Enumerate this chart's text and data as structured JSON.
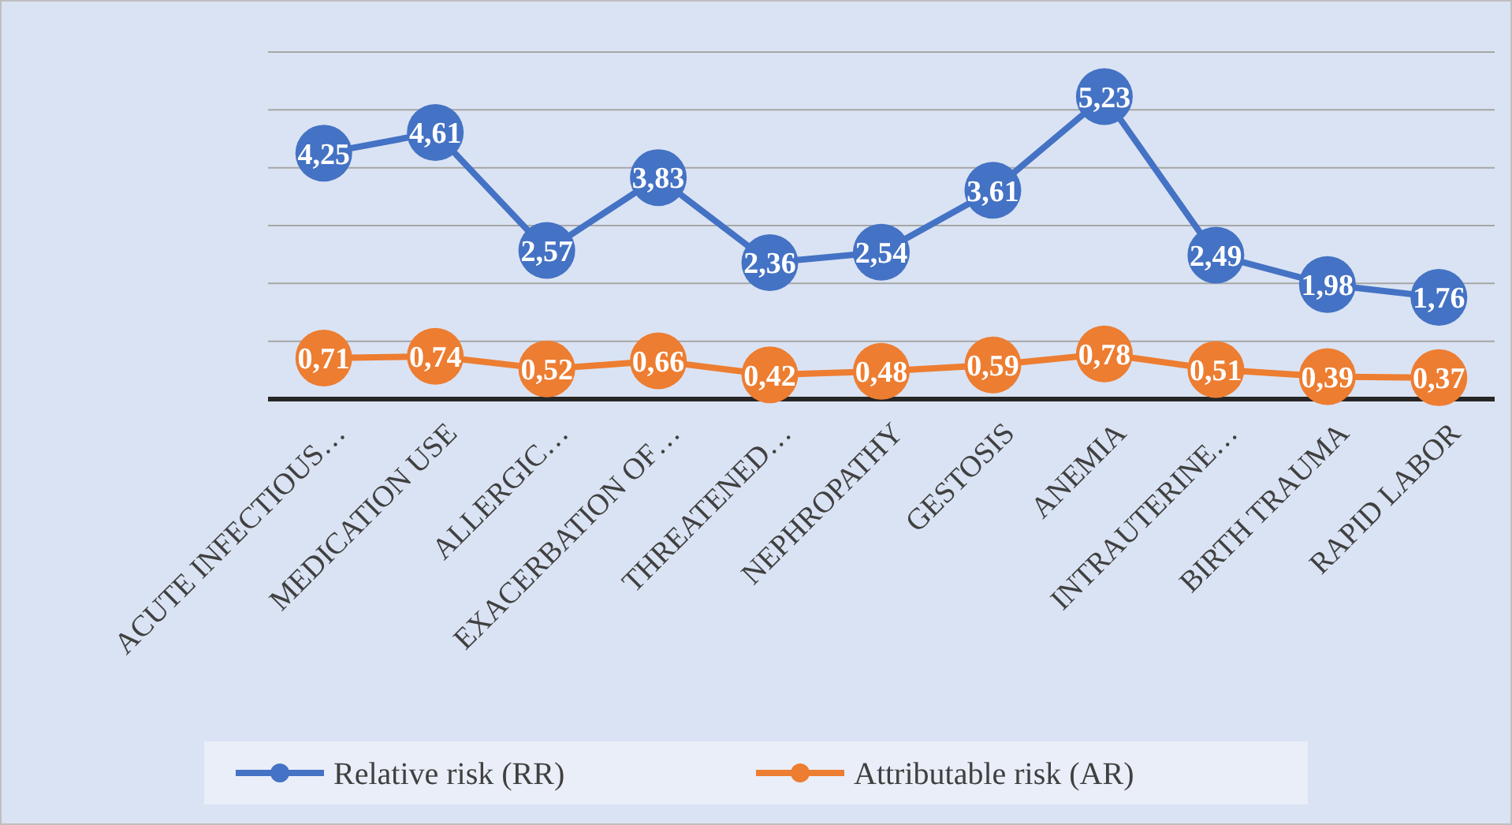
{
  "chart_data": {
    "type": "line",
    "categories": [
      "ACUTE INFECTIOUS…",
      "MEDICATION USE",
      "ALLERGIC…",
      "EXACERBATION OF…",
      "THREATENED…",
      "NEPHROPATHY",
      "GESTOSIS",
      "ANEMIA",
      "INTRAUTERINE…",
      "BIRTH TRAUMA",
      "RAPID LABOR"
    ],
    "series": [
      {
        "name": "Relative risk (RR)",
        "color": "#4472c4",
        "values": [
          4.25,
          4.61,
          2.57,
          3.83,
          2.36,
          2.54,
          3.61,
          5.23,
          2.49,
          1.98,
          1.76
        ],
        "value_labels": [
          "4,25",
          "4,61",
          "2,57",
          "3,83",
          "2,36",
          "2,54",
          "3,61",
          "5,23",
          "2,49",
          "1,98",
          "1,76"
        ]
      },
      {
        "name": "Attributable risk (AR)",
        "color": "#ed7d31",
        "values": [
          0.71,
          0.74,
          0.52,
          0.66,
          0.42,
          0.48,
          0.59,
          0.78,
          0.51,
          0.39,
          0.37
        ],
        "value_labels": [
          "0,71",
          "0,74",
          "0,52",
          "0,66",
          "0,42",
          "0,48",
          "0,59",
          "0,78",
          "0,51",
          "0,39",
          "0,37"
        ]
      }
    ],
    "ylim": [
      0,
      6
    ],
    "yticks": [
      {
        "value": 0,
        "label": null
      },
      {
        "value": 1,
        "label": null
      },
      {
        "value": 2,
        "label": null
      },
      {
        "value": 3,
        "label": null
      },
      {
        "value": 4,
        "label": null
      },
      {
        "value": 5,
        "label": null
      },
      {
        "value": 6,
        "label": null
      }
    ],
    "tick_labels": "x",
    "grid": "y",
    "legend": "bottom",
    "marker": "circle",
    "line_style": "solid"
  }
}
